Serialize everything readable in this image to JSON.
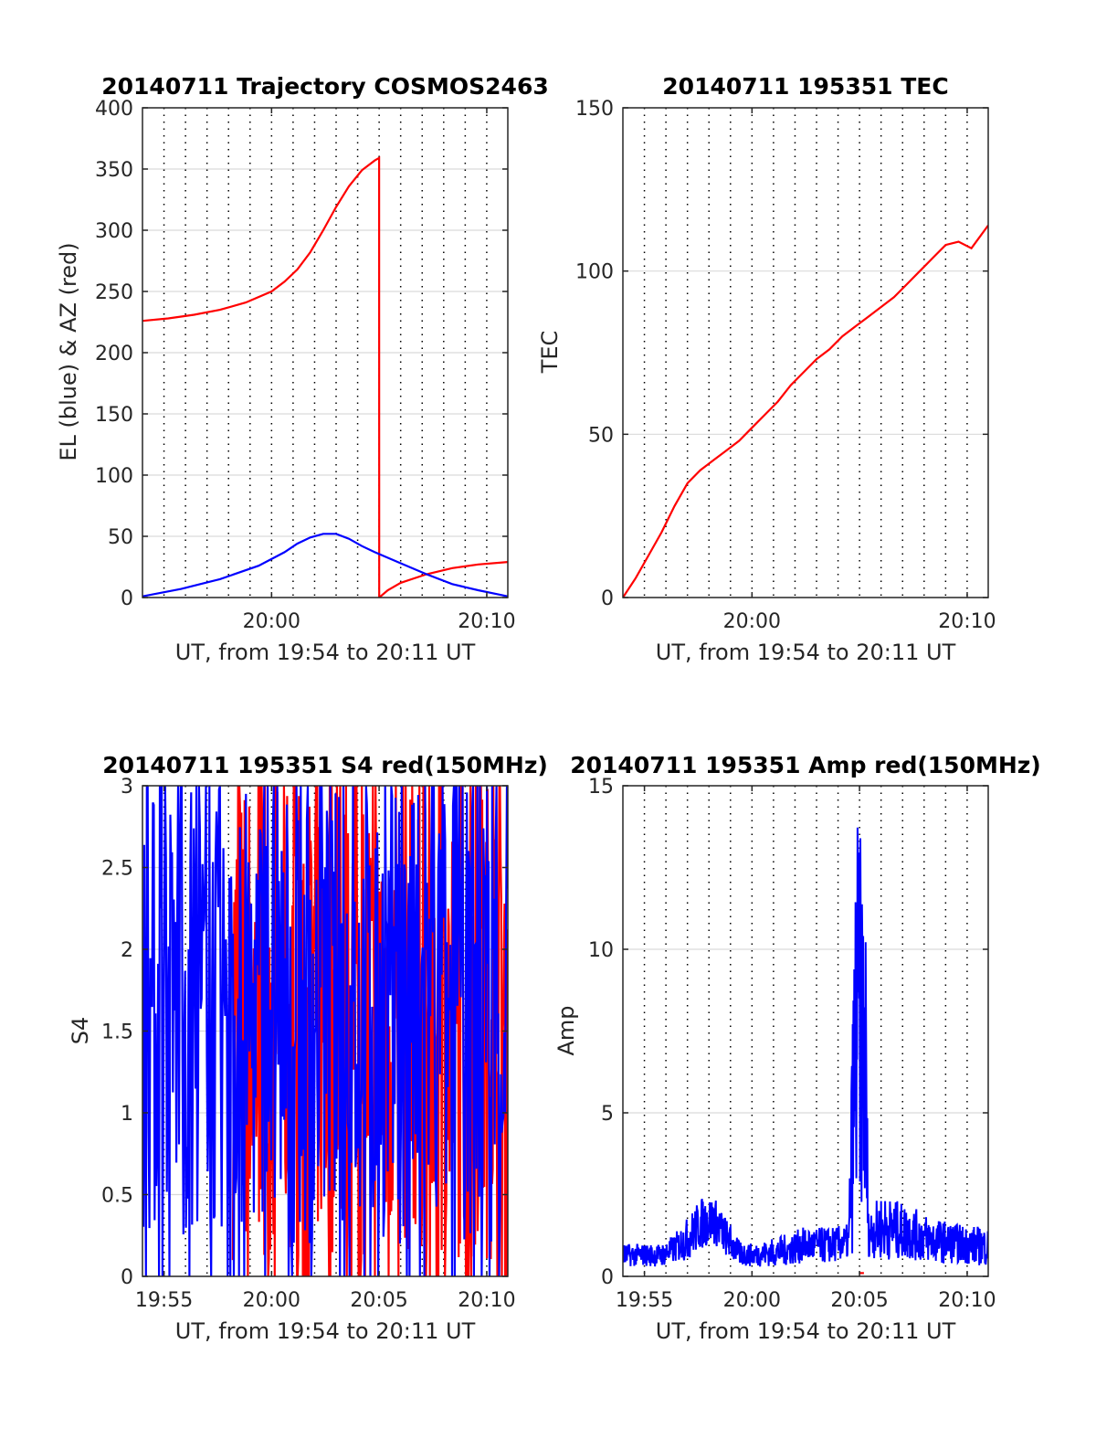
{
  "colors": {
    "red": "#ff0000",
    "blue": "#0000ff",
    "grid": "#d9d9d9",
    "vgrid": "#000000",
    "axis": "#262626"
  },
  "chart_data": [
    {
      "id": "traj",
      "type": "line",
      "title": "20140711 Trajectory COSMOS2463",
      "xlabel": "UT, from 19:54 to 20:11 UT",
      "ylabel": "EL (blue) & AZ (red)",
      "xlim": [
        19.9,
        20.183
      ],
      "ylim": [
        0,
        400
      ],
      "xticks": [
        {
          "v": 20.0,
          "label": "20:00"
        },
        {
          "v": 20.1667,
          "label": "20:10"
        }
      ],
      "yticks": [
        {
          "v": 0,
          "label": "0"
        },
        {
          "v": 50,
          "label": "50"
        },
        {
          "v": 100,
          "label": "100"
        },
        {
          "v": 150,
          "label": "150"
        },
        {
          "v": 200,
          "label": "200"
        },
        {
          "v": 250,
          "label": "250"
        },
        {
          "v": 300,
          "label": "300"
        },
        {
          "v": 350,
          "label": "350"
        },
        {
          "v": 400,
          "label": "400"
        }
      ],
      "grid": "horizontal solid, vertical dotted",
      "series": [
        {
          "color": "#ff0000",
          "x": [
            19.9,
            19.92,
            19.94,
            19.96,
            19.98,
            20.0,
            20.01,
            20.02,
            20.03,
            20.04,
            20.05,
            20.06,
            20.07,
            20.08,
            20.0833,
            20.0834,
            20.09,
            20.1,
            20.12,
            20.14,
            20.16,
            20.183
          ],
          "y": [
            226,
            228,
            231,
            235,
            241,
            250,
            258,
            268,
            282,
            300,
            319,
            336,
            349,
            357,
            359,
            0,
            6,
            12,
            19,
            24,
            27,
            29
          ]
        },
        {
          "color": "#0000ff",
          "x": [
            19.9,
            19.93,
            19.96,
            19.99,
            20.01,
            20.02,
            20.03,
            20.04,
            20.05,
            20.06,
            20.07,
            20.08,
            20.1,
            20.12,
            20.14,
            20.16,
            20.183
          ],
          "y": [
            1,
            7,
            15,
            26,
            37,
            44,
            49,
            52,
            52,
            48,
            42,
            37,
            28,
            19,
            11,
            6,
            1
          ]
        }
      ]
    },
    {
      "id": "tec",
      "type": "line",
      "title": "20140711 195351 TEC",
      "xlabel": "UT, from 19:54 to 20:11 UT",
      "ylabel": "TEC",
      "xlim": [
        19.9,
        20.183
      ],
      "ylim": [
        0,
        150
      ],
      "xticks": [
        {
          "v": 20.0,
          "label": "20:00"
        },
        {
          "v": 20.1667,
          "label": "20:10"
        }
      ],
      "yticks": [
        {
          "v": 0,
          "label": "0"
        },
        {
          "v": 50,
          "label": "50"
        },
        {
          "v": 100,
          "label": "100"
        },
        {
          "v": 150,
          "label": "150"
        }
      ],
      "grid": "horizontal solid, vertical dotted",
      "series": [
        {
          "color": "#ff0000",
          "x": [
            19.9,
            19.91,
            19.92,
            19.93,
            19.94,
            19.95,
            19.96,
            19.97,
            19.98,
            19.99,
            20.0,
            20.01,
            20.02,
            20.03,
            20.04,
            20.05,
            20.06,
            20.07,
            20.08,
            20.09,
            20.1,
            20.11,
            20.12,
            20.13,
            20.14,
            20.15,
            20.16,
            20.17,
            20.183
          ],
          "y": [
            0,
            6,
            13,
            20,
            28,
            35,
            39,
            42,
            45,
            48,
            52,
            56,
            60,
            65,
            69,
            73,
            76,
            80,
            83,
            86,
            89,
            92,
            96,
            100,
            104,
            108,
            109,
            107,
            114
          ]
        }
      ]
    },
    {
      "id": "s4",
      "type": "line",
      "title": "20140711 195351 S4 red(150MHz)",
      "xlabel": "UT, from 19:54 to 20:11 UT",
      "ylabel": "S4",
      "xlim": [
        19.9,
        20.183
      ],
      "ylim": [
        0,
        3
      ],
      "xticks": [
        {
          "v": 19.9167,
          "label": "19:55"
        },
        {
          "v": 20.0,
          "label": "20:00"
        },
        {
          "v": 20.0833,
          "label": "20:05"
        },
        {
          "v": 20.1667,
          "label": "20:10"
        }
      ],
      "yticks": [
        {
          "v": 0,
          "label": "0"
        },
        {
          "v": 0.5,
          "label": "0.5"
        },
        {
          "v": 1,
          "label": "1"
        },
        {
          "v": 1.5,
          "label": "1.5"
        },
        {
          "v": 2,
          "label": "2"
        },
        {
          "v": 2.5,
          "label": "2.5"
        },
        {
          "v": 3,
          "label": "3"
        }
      ],
      "grid": "horizontal solid, vertical dotted",
      "series": [
        {
          "color": "#ff0000",
          "noise": {
            "center": 1.6,
            "spread": 1.5,
            "min": 0,
            "max": 3,
            "x_from": 19.97,
            "x_to": 20.183
          }
        },
        {
          "color": "#0000ff",
          "noise": {
            "center": 1.6,
            "spread": 1.4,
            "min": 0,
            "max": 3,
            "x_from": 19.9,
            "x_to": 20.183
          }
        }
      ]
    },
    {
      "id": "amp",
      "type": "line",
      "title": "20140711 195351 Amp red(150MHz)",
      "xlabel": "UT, from 19:54 to 20:11 UT",
      "ylabel": "Amp",
      "xlim": [
        19.9,
        20.183
      ],
      "ylim": [
        0,
        15
      ],
      "xticks": [
        {
          "v": 19.9167,
          "label": "19:55"
        },
        {
          "v": 20.0,
          "label": "20:00"
        },
        {
          "v": 20.0833,
          "label": "20:05"
        },
        {
          "v": 20.1667,
          "label": "20:10"
        }
      ],
      "yticks": [
        {
          "v": 0,
          "label": "0"
        },
        {
          "v": 5,
          "label": "5"
        },
        {
          "v": 10,
          "label": "10"
        },
        {
          "v": 15,
          "label": "15"
        }
      ],
      "grid": "horizontal solid, vertical dotted",
      "series": [
        {
          "color": "#ff0000",
          "x": [
            20.0833,
            20.0867
          ],
          "y": [
            0.1,
            0.1
          ]
        },
        {
          "color": "#0000ff",
          "envelope": {
            "x": [
              19.9,
              19.93,
              19.94,
              19.95,
              19.96,
              19.97,
              19.98,
              19.99,
              20.0,
              20.02,
              20.04,
              20.06,
              20.075,
              20.08,
              20.082,
              20.085,
              20.088,
              20.09,
              20.1,
              20.12,
              20.14,
              20.16,
              20.183
            ],
            "low": [
              0.3,
              0.3,
              0.4,
              0.5,
              0.8,
              1.0,
              0.6,
              0.3,
              0.3,
              0.3,
              0.4,
              0.4,
              0.5,
              0.8,
              1.5,
              2.0,
              1.0,
              0.6,
              0.5,
              0.5,
              0.4,
              0.4,
              0.3
            ],
            "high": [
              1.0,
              1.0,
              1.3,
              1.8,
              2.4,
              2.5,
              1.8,
              1.1,
              1.0,
              1.2,
              1.5,
              1.5,
              1.6,
              13.0,
              14.4,
              13.0,
              11.5,
              2.0,
              2.5,
              2.2,
              1.8,
              1.6,
              1.5
            ]
          }
        }
      ]
    }
  ]
}
